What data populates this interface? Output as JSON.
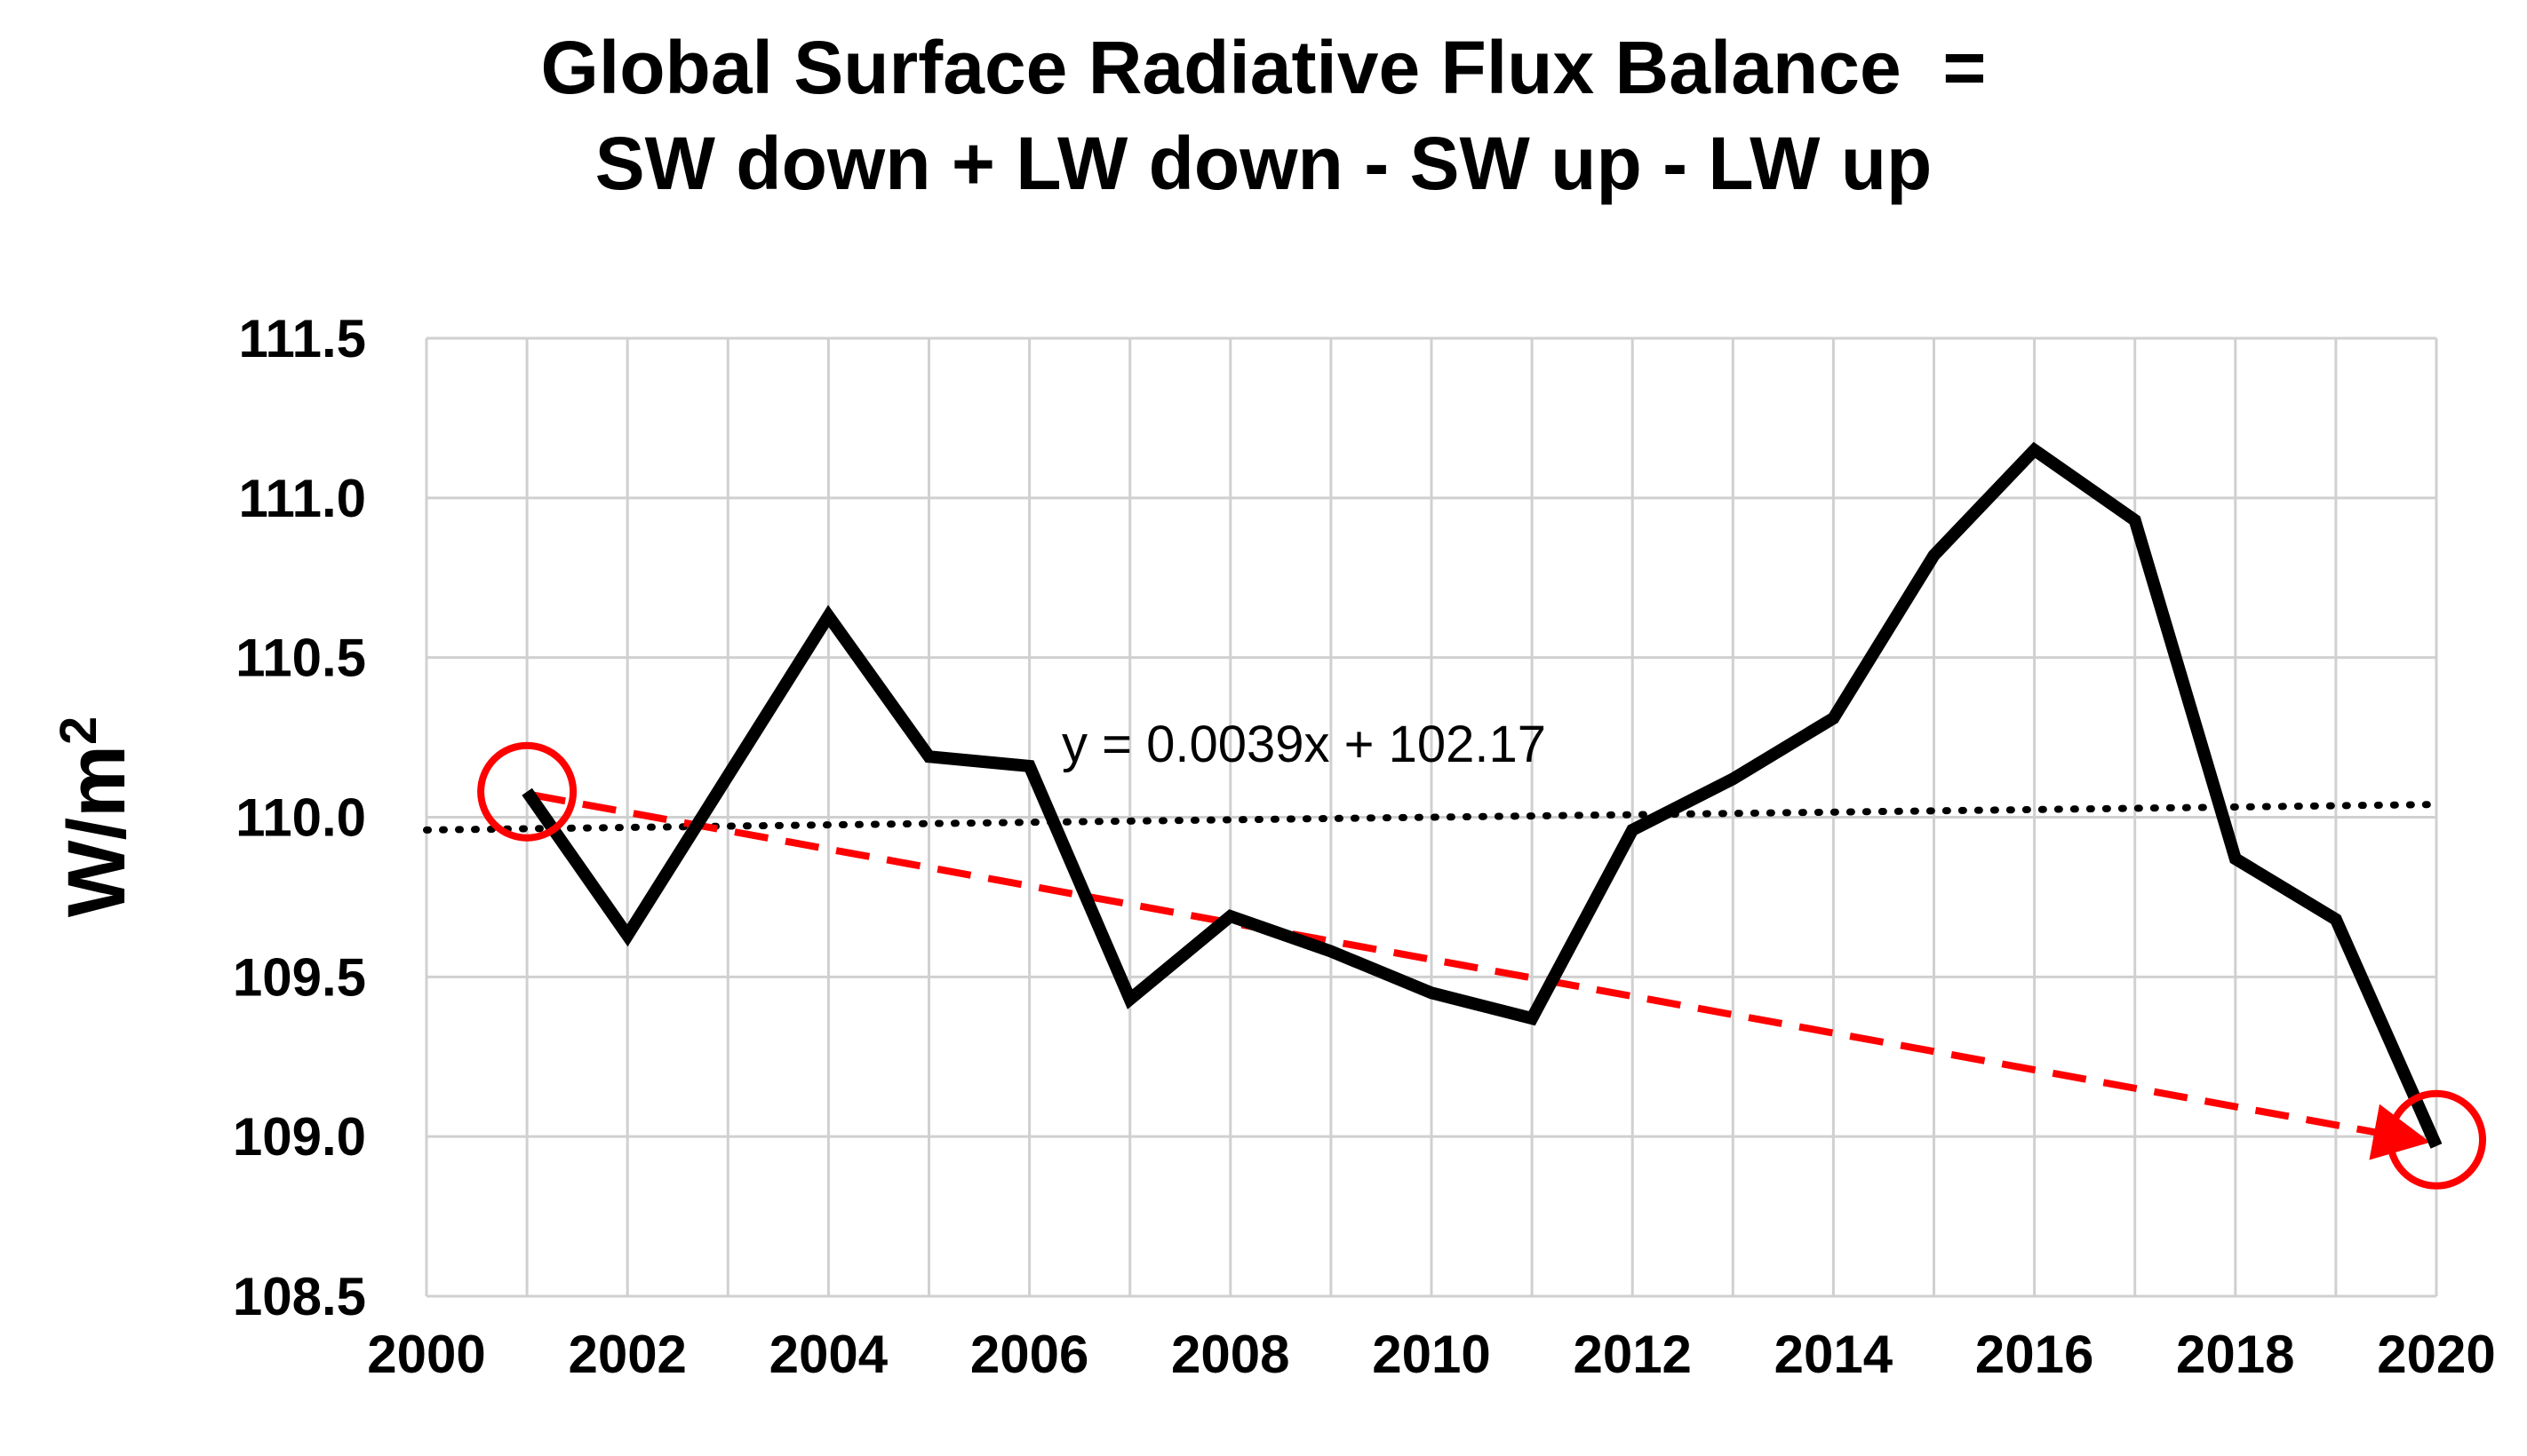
{
  "chart_data": {
    "type": "line",
    "title_lines": [
      "Global Surface Radiative Flux Balance  =",
      "SW down + LW down - SW up - LW up"
    ],
    "xlabel": "",
    "ylabel": "W/m",
    "ylabel_superscript": "2",
    "xlim": [
      2000,
      2020
    ],
    "ylim": [
      108.5,
      111.5
    ],
    "x_ticks": [
      2000,
      2002,
      2004,
      2006,
      2008,
      2010,
      2012,
      2014,
      2016,
      2018,
      2020
    ],
    "x_tick_labels": [
      "2000",
      "2002",
      "2004",
      "2006",
      "2008",
      "2010",
      "2012",
      "2014",
      "2016",
      "2018",
      "2020"
    ],
    "y_ticks": [
      108.5,
      109.0,
      109.5,
      110.0,
      110.5,
      111.0,
      111.5
    ],
    "y_tick_labels": [
      "108.5",
      "109.0",
      "109.5",
      "110.0",
      "110.5",
      "111.0",
      "111.5"
    ],
    "x_grid_step": 1,
    "grid": true,
    "series": [
      {
        "color": "#000000",
        "style": "solid",
        "x": [
          2001,
          2002,
          2003,
          2004,
          2005,
          2006,
          2007,
          2008,
          2009,
          2010,
          2011,
          2012,
          2013,
          2014,
          2015,
          2016,
          2017,
          2018,
          2019,
          2020
        ],
        "y": [
          110.08,
          109.63,
          110.13,
          110.63,
          110.19,
          110.16,
          109.43,
          109.69,
          109.58,
          109.45,
          109.37,
          109.96,
          110.12,
          110.31,
          110.82,
          111.15,
          110.93,
          109.87,
          109.68,
          108.97
        ]
      }
    ],
    "trendline": {
      "color": "#000000",
      "style": "dotted",
      "slope": 0.0039,
      "intercept": 102.17,
      "x_range": [
        2000,
        2020
      ],
      "y_range": [
        109.96,
        110.04
      ],
      "equation_label": "y = 0.0039x + 102.17"
    },
    "arrow": {
      "color": "#ff0000",
      "style": "dashed",
      "from": [
        2001.05,
        110.07
      ],
      "to": [
        2019.8,
        108.99
      ]
    },
    "circles": [
      {
        "x": 2001,
        "y": 110.08,
        "color": "#ff0000"
      },
      {
        "x": 2020,
        "y": 108.99,
        "color": "#ff0000"
      }
    ]
  }
}
